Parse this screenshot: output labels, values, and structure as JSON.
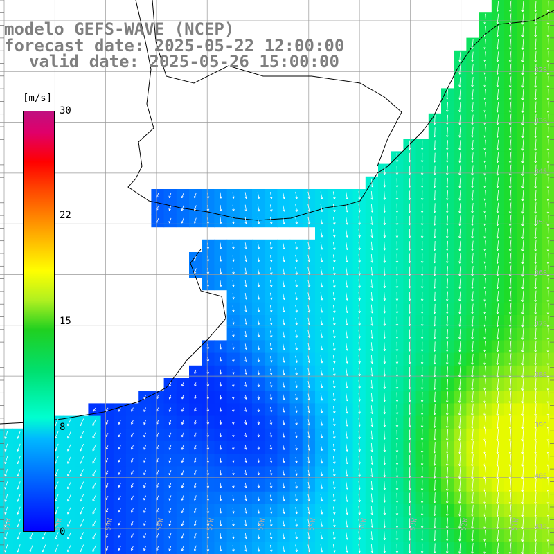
{
  "title": {
    "line1": "modelo GEFS-WAVE (NCEP)",
    "line2": "forecast date: 2025-05-22 12:00:00",
    "line3": "valid date: 2025-05-26 15:00:00"
  },
  "colorbar": {
    "unit": "[m/s]",
    "ticks": [
      "30",
      "22",
      "15",
      "8",
      "0"
    ],
    "tick_values": [
      30,
      22,
      15,
      8,
      0
    ],
    "colors": [
      "#0000ff",
      "#00b8ff",
      "#00ffd0",
      "#20d020",
      "#ffff00",
      "#ff0000",
      "#c01080"
    ]
  },
  "axes": {
    "lat_labels": [
      "32S",
      "33S",
      "34S",
      "35S",
      "36S",
      "37S",
      "38S",
      "39S",
      "40S",
      "41S"
    ],
    "lon_labels": [
      "61W",
      "60W",
      "59W",
      "58W",
      "57W",
      "56W",
      "55W",
      "54W",
      "53W",
      "52W",
      "51W"
    ]
  },
  "colors": {
    "land": "#ffffff",
    "coast": "#000000",
    "grid": "#888888",
    "arrow": "#ffffff"
  }
}
